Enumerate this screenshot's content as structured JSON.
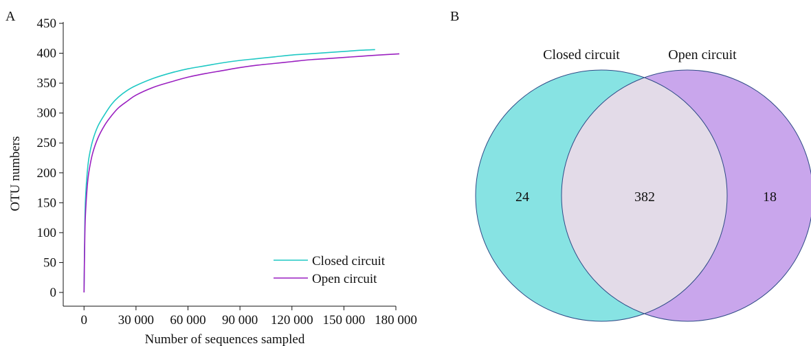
{
  "panels": {
    "a_label": "A",
    "b_label": "B"
  },
  "chart_data": [
    {
      "type": "line",
      "panel": "A",
      "xlabel": "Number of sequences sampled",
      "ylabel": "OTU numbers",
      "xlim": [
        -12000,
        180000
      ],
      "ylim": [
        0,
        450
      ],
      "xticks": [
        0,
        30000,
        60000,
        90000,
        120000,
        150000,
        180000
      ],
      "xtick_labels": [
        "0",
        "30 000",
        "60 000",
        "90 000",
        "120 000",
        "150 000",
        "180 000"
      ],
      "yticks": [
        0,
        50,
        100,
        150,
        200,
        250,
        300,
        350,
        400,
        450
      ],
      "ytick_labels": [
        "0",
        "50",
        "100",
        "150",
        "200",
        "250",
        "300",
        "350",
        "400",
        "450"
      ],
      "grid": false,
      "legend_position": "bottom-right",
      "series": [
        {
          "name": "Closed circuit",
          "color": "#1ec8c4",
          "x": [
            0,
            500,
            1000,
            2000,
            3000,
            5000,
            8000,
            12000,
            16000,
            20000,
            25000,
            30000,
            40000,
            50000,
            60000,
            70000,
            80000,
            90000,
            100000,
            110000,
            120000,
            130000,
            140000,
            150000,
            160000,
            168000
          ],
          "y": [
            0,
            120,
            165,
            205,
            228,
            254,
            278,
            298,
            315,
            327,
            338,
            346,
            358,
            367,
            374,
            379,
            384,
            388,
            391,
            394,
            397,
            399,
            401,
            403,
            405,
            406
          ]
        },
        {
          "name": "Open circuit",
          "color": "#9a1fc0",
          "x": [
            0,
            500,
            1000,
            2000,
            3000,
            5000,
            8000,
            12000,
            16000,
            20000,
            25000,
            30000,
            40000,
            50000,
            60000,
            70000,
            80000,
            90000,
            100000,
            110000,
            120000,
            130000,
            140000,
            150000,
            160000,
            170000,
            182000
          ],
          "y": [
            0,
            100,
            140,
            182,
            205,
            233,
            258,
            280,
            296,
            309,
            320,
            330,
            343,
            352,
            360,
            366,
            371,
            376,
            380,
            383,
            386,
            389,
            391,
            393,
            395,
            397,
            399
          ]
        }
      ]
    },
    {
      "type": "venn",
      "panel": "B",
      "sets": [
        {
          "name": "Closed circuit",
          "unique": "24",
          "color": "#87e3e3"
        },
        {
          "name": "Open circuit",
          "unique": "18",
          "color": "#c9a6ec"
        }
      ],
      "intersection": "382",
      "intersection_color": "#e3dbe8",
      "outline_color": "#2e4a86"
    }
  ]
}
